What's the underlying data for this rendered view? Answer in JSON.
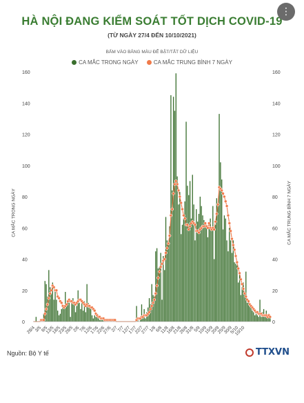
{
  "header": {
    "title": "HÀ NỘI ĐANG KIỂM SOÁT TỐT DỊCH COVID-19",
    "subtitle": "(TỪ NGÀY 27/4 ĐẾN 10/10/2021)",
    "menu_icon": "more-vertical-icon"
  },
  "legend": {
    "hint": "BẤM VÀO BẢNG MÀU ĐỂ BẬT/TẮT DỮ LIỆU",
    "items": [
      {
        "label": "CA MẮC TRONG NGÀY",
        "color": "#3a6f2e"
      },
      {
        "label": "CA MẮC TRUNG BÌNH 7 NGÀY",
        "color": "#f07a4a"
      }
    ]
  },
  "footer": {
    "source": "Nguồn: Bộ Y tế",
    "logo_text": "TTXVN"
  },
  "chart_data": {
    "type": "bar",
    "start_date": "2021-04-27",
    "ylim": [
      0,
      160
    ],
    "y_ticks": [
      0,
      20,
      40,
      60,
      80,
      100,
      120,
      140,
      160
    ],
    "ylabel": "CA MẮC TRONG NGÀY",
    "ylabel_right": "CA MẮC TRUNG BÌNH 7 NGÀY",
    "x_tick_labels": [
      "28/4",
      "3/5",
      "8/5",
      "13/5",
      "18/5",
      "23/5",
      "28/5",
      "2/6",
      "7/6",
      "12/6",
      "17/6",
      "22/6",
      "27/6",
      "2/7",
      "7/7",
      "12/7",
      "17/7",
      "22/7",
      "27/7",
      "1/8",
      "6/8",
      "11/8",
      "16/8",
      "21/8",
      "26/8",
      "31/8",
      "5/9",
      "10/9",
      "15/9",
      "20/9",
      "25/9",
      "30/9",
      "5/10",
      "10/10"
    ],
    "grid": false,
    "series": [
      {
        "name": "CA MẮC TRONG NGÀY",
        "type": "bar",
        "color": "#3a6f2e",
        "values": [
          0,
          0,
          3,
          0,
          0,
          0,
          0,
          0,
          5,
          26,
          24,
          16,
          33,
          22,
          18,
          25,
          14,
          20,
          14,
          7,
          4,
          5,
          8,
          10,
          9,
          19,
          11,
          13,
          12,
          3,
          13,
          15,
          11,
          6,
          10,
          20,
          12,
          8,
          13,
          7,
          13,
          6,
          24,
          12,
          9,
          9,
          4,
          2,
          4,
          3,
          5,
          2,
          1,
          1,
          1,
          2,
          1,
          1,
          1,
          1,
          0,
          1,
          0,
          1,
          0,
          0,
          0,
          0,
          0,
          0,
          0,
          0,
          0,
          0,
          0,
          0,
          0,
          0,
          0,
          0,
          0,
          10,
          2,
          0,
          2,
          11,
          2,
          8,
          2,
          6,
          9,
          15,
          11,
          24,
          17,
          16,
          45,
          47,
          34,
          35,
          44,
          14,
          42,
          33,
          67,
          52,
          51,
          61,
          145,
          84,
          144,
          135,
          159,
          93,
          75,
          83,
          56,
          62,
          66,
          77,
          128,
          87,
          81,
          90,
          66,
          94,
          75,
          52,
          72,
          64,
          69,
          80,
          74,
          68,
          65,
          62,
          62,
          54,
          60,
          66,
          60,
          74,
          40,
          62,
          79,
          74,
          133,
          102,
          91,
          59,
          68,
          66,
          52,
          45,
          60,
          52,
          44,
          52,
          38,
          37,
          36,
          25,
          30,
          17,
          22,
          25,
          17,
          32,
          12,
          14,
          10,
          9,
          7,
          6,
          4,
          5,
          4,
          3,
          14,
          3,
          6,
          8,
          3,
          7,
          4,
          5,
          3
        ]
      },
      {
        "name": "CA MẮC TRUNG BÌNH 7 NGÀY",
        "type": "line",
        "color": "#f07a4a",
        "values": [
          0,
          0,
          0,
          0,
          0,
          0,
          1,
          1,
          1,
          5,
          8,
          11,
          15,
          18,
          20,
          23,
          22,
          20,
          20,
          16,
          15,
          13,
          12,
          10,
          9,
          10,
          11,
          13,
          14,
          13,
          13,
          12,
          12,
          11,
          12,
          13,
          14,
          14,
          13,
          12,
          11,
          10,
          11,
          10,
          10,
          9,
          9,
          8,
          7,
          5,
          4,
          3,
          3,
          2,
          2,
          2,
          1,
          1,
          1,
          1,
          1,
          1,
          1,
          1,
          1,
          0,
          0,
          0,
          0,
          0,
          0,
          0,
          0,
          0,
          0,
          0,
          0,
          0,
          0,
          0,
          0,
          1,
          2,
          2,
          2,
          3,
          3,
          4,
          4,
          4,
          5,
          6,
          8,
          10,
          12,
          14,
          18,
          23,
          28,
          32,
          35,
          37,
          39,
          40,
          44,
          47,
          50,
          55,
          68,
          72,
          82,
          88,
          90,
          88,
          84,
          80,
          76,
          72,
          68,
          66,
          62,
          62,
          59,
          61,
          63,
          64,
          63,
          62,
          58,
          58,
          57,
          59,
          60,
          61,
          61,
          63,
          61,
          60,
          63,
          60,
          59,
          60,
          59,
          64,
          69,
          75,
          86,
          85,
          84,
          82,
          80,
          77,
          74,
          68,
          63,
          58,
          53,
          49,
          46,
          42,
          38,
          34,
          31,
          27,
          24,
          21,
          18,
          16,
          14,
          13,
          11,
          10,
          9,
          8,
          7,
          6,
          6,
          5,
          5,
          5,
          4,
          4,
          4,
          4,
          3,
          4,
          3
        ]
      }
    ]
  }
}
